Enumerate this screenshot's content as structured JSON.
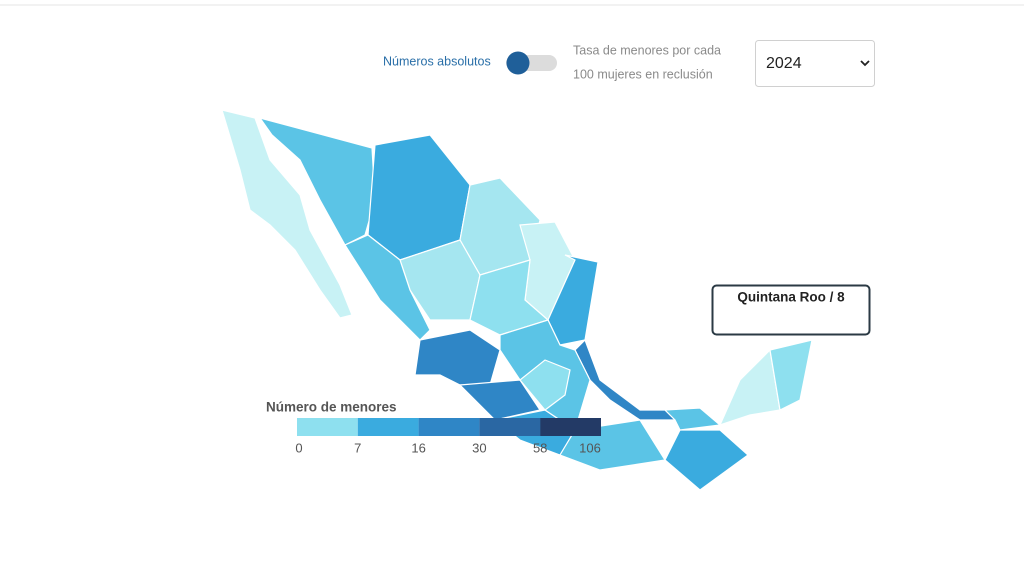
{
  "controls": {
    "toggle_left": "Números absolutos",
    "toggle_right": [
      "Tasa de menores por cada",
      "100 mujeres en reclusión"
    ],
    "year": "2024"
  },
  "tooltip": "Quintana Roo / 8",
  "legend": {
    "title": "Número de menores",
    "ticks": [
      0,
      7,
      16,
      30,
      58,
      106
    ],
    "colors": [
      "#8ee0ef",
      "#3aabdf",
      "#2f86c6",
      "#2a67a3",
      "#233a66"
    ]
  }
}
